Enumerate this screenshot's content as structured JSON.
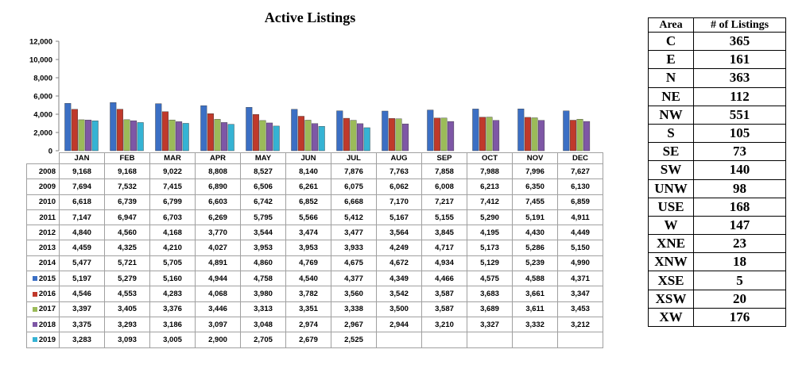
{
  "chart_data": {
    "type": "bar",
    "title": "Active Listings",
    "categories": [
      "JAN",
      "FEB",
      "MAR",
      "APR",
      "MAY",
      "JUN",
      "JUL",
      "AUG",
      "SEP",
      "OCT",
      "NOV",
      "DEC"
    ],
    "ylim": [
      0,
      12000
    ],
    "yticks": [
      "0",
      "2,000",
      "4,000",
      "6,000",
      "8,000",
      "10,000",
      "12,000"
    ],
    "plotted_series": [
      "2015",
      "2016",
      "2017",
      "2018",
      "2019"
    ],
    "series": [
      {
        "name": "2008",
        "values": [
          9168,
          9168,
          9022,
          8808,
          8527,
          8140,
          7876,
          7763,
          7858,
          7988,
          7996,
          7627
        ]
      },
      {
        "name": "2009",
        "values": [
          7694,
          7532,
          7415,
          6890,
          6506,
          6261,
          6075,
          6062,
          6008,
          6213,
          6350,
          6130
        ]
      },
      {
        "name": "2010",
        "values": [
          6618,
          6739,
          6799,
          6603,
          6742,
          6852,
          6668,
          7170,
          7217,
          7412,
          7455,
          6859
        ]
      },
      {
        "name": "2011",
        "values": [
          7147,
          6947,
          6703,
          6269,
          5795,
          5566,
          5412,
          5167,
          5155,
          5290,
          5191,
          4911
        ]
      },
      {
        "name": "2012",
        "values": [
          4840,
          4560,
          4168,
          3770,
          3544,
          3474,
          3477,
          3564,
          3845,
          4195,
          4430,
          4449
        ]
      },
      {
        "name": "2013",
        "values": [
          4459,
          4325,
          4210,
          4027,
          3953,
          3953,
          3933,
          4249,
          4717,
          5173,
          5286,
          5150
        ]
      },
      {
        "name": "2014",
        "values": [
          5477,
          5721,
          5705,
          4891,
          4860,
          4769,
          4675,
          4672,
          4934,
          5129,
          5239,
          4990
        ]
      },
      {
        "name": "2015",
        "color": "#3b6fc4",
        "values": [
          5197,
          5279,
          5160,
          4944,
          4758,
          4540,
          4377,
          4349,
          4466,
          4575,
          4588,
          4371
        ]
      },
      {
        "name": "2016",
        "color": "#c0392b",
        "values": [
          4546,
          4553,
          4283,
          4068,
          3980,
          3782,
          3560,
          3542,
          3587,
          3683,
          3661,
          3347
        ]
      },
      {
        "name": "2017",
        "color": "#9bbb59",
        "values": [
          3397,
          3405,
          3376,
          3446,
          3313,
          3351,
          3338,
          3500,
          3587,
          3689,
          3611,
          3453
        ]
      },
      {
        "name": "2018",
        "color": "#7e57a6",
        "values": [
          3375,
          3293,
          3186,
          3097,
          3048,
          2974,
          2967,
          2944,
          3210,
          3327,
          3332,
          3212
        ]
      },
      {
        "name": "2019",
        "color": "#35b3d4",
        "values": [
          3283,
          3093,
          3005,
          2900,
          2705,
          2679,
          2525,
          null,
          null,
          null,
          null,
          null
        ]
      }
    ],
    "table_display": [
      [
        "9,168",
        "9,168",
        "9,022",
        "8,808",
        "8,527",
        "8,140",
        "7,876",
        "7,763",
        "7,858",
        "7,988",
        "7,996",
        "7,627"
      ],
      [
        "7,694",
        "7,532",
        "7,415",
        "6,890",
        "6,506",
        "6,261",
        "6,075",
        "6,062",
        "6,008",
        "6,213",
        "6,350",
        "6,130"
      ],
      [
        "6,618",
        "6,739",
        "6,799",
        "6,603",
        "6,742",
        "6,852",
        "6,668",
        "7,170",
        "7,217",
        "7,412",
        "7,455",
        "6,859"
      ],
      [
        "7,147",
        "6,947",
        "6,703",
        "6,269",
        "5,795",
        "5,566",
        "5,412",
        "5,167",
        "5,155",
        "5,290",
        "5,191",
        "4,911"
      ],
      [
        "4,840",
        "4,560",
        "4,168",
        "3,770",
        "3,544",
        "3,474",
        "3,477",
        "3,564",
        "3,845",
        "4,195",
        "4,430",
        "4,449"
      ],
      [
        "4,459",
        "4,325",
        "4,210",
        "4,027",
        "3,953",
        "3,953",
        "3,933",
        "4,249",
        "4,717",
        "5,173",
        "5,286",
        "5,150"
      ],
      [
        "5,477",
        "5,721",
        "5,705",
        "4,891",
        "4,860",
        "4,769",
        "4,675",
        "4,672",
        "4,934",
        "5,129",
        "5,239",
        "4,990"
      ],
      [
        "5,197",
        "5,279",
        "5,160",
        "4,944",
        "4,758",
        "4,540",
        "4,377",
        "4,349",
        "4,466",
        "4,575",
        "4,588",
        "4,371"
      ],
      [
        "4,546",
        "4,553",
        "4,283",
        "4,068",
        "3,980",
        "3,782",
        "3,560",
        "3,542",
        "3,587",
        "3,683",
        "3,661",
        "3,347"
      ],
      [
        "3,397",
        "3,405",
        "3,376",
        "3,446",
        "3,313",
        "3,351",
        "3,338",
        "3,500",
        "3,587",
        "3,689",
        "3,611",
        "3,453"
      ],
      [
        "3,375",
        "3,293",
        "3,186",
        "3,097",
        "3,048",
        "2,974",
        "2,967",
        "2,944",
        "3,210",
        "3,327",
        "3,332",
        "3,212"
      ],
      [
        "3,283",
        "3,093",
        "3,005",
        "2,900",
        "2,705",
        "2,679",
        "2,525",
        "",
        "",
        "",
        "",
        ""
      ]
    ]
  },
  "area_table": {
    "headers": [
      "Area",
      "# of Listings"
    ],
    "rows": [
      [
        "C",
        "365"
      ],
      [
        "E",
        "161"
      ],
      [
        "N",
        "363"
      ],
      [
        "NE",
        "112"
      ],
      [
        "NW",
        "551"
      ],
      [
        "S",
        "105"
      ],
      [
        "SE",
        "73"
      ],
      [
        "SW",
        "140"
      ],
      [
        "UNW",
        "98"
      ],
      [
        "USE",
        "168"
      ],
      [
        "W",
        "147"
      ],
      [
        "XNE",
        "23"
      ],
      [
        "XNW",
        "18"
      ],
      [
        "XSE",
        "5"
      ],
      [
        "XSW",
        "20"
      ],
      [
        "XW",
        "176"
      ]
    ]
  }
}
